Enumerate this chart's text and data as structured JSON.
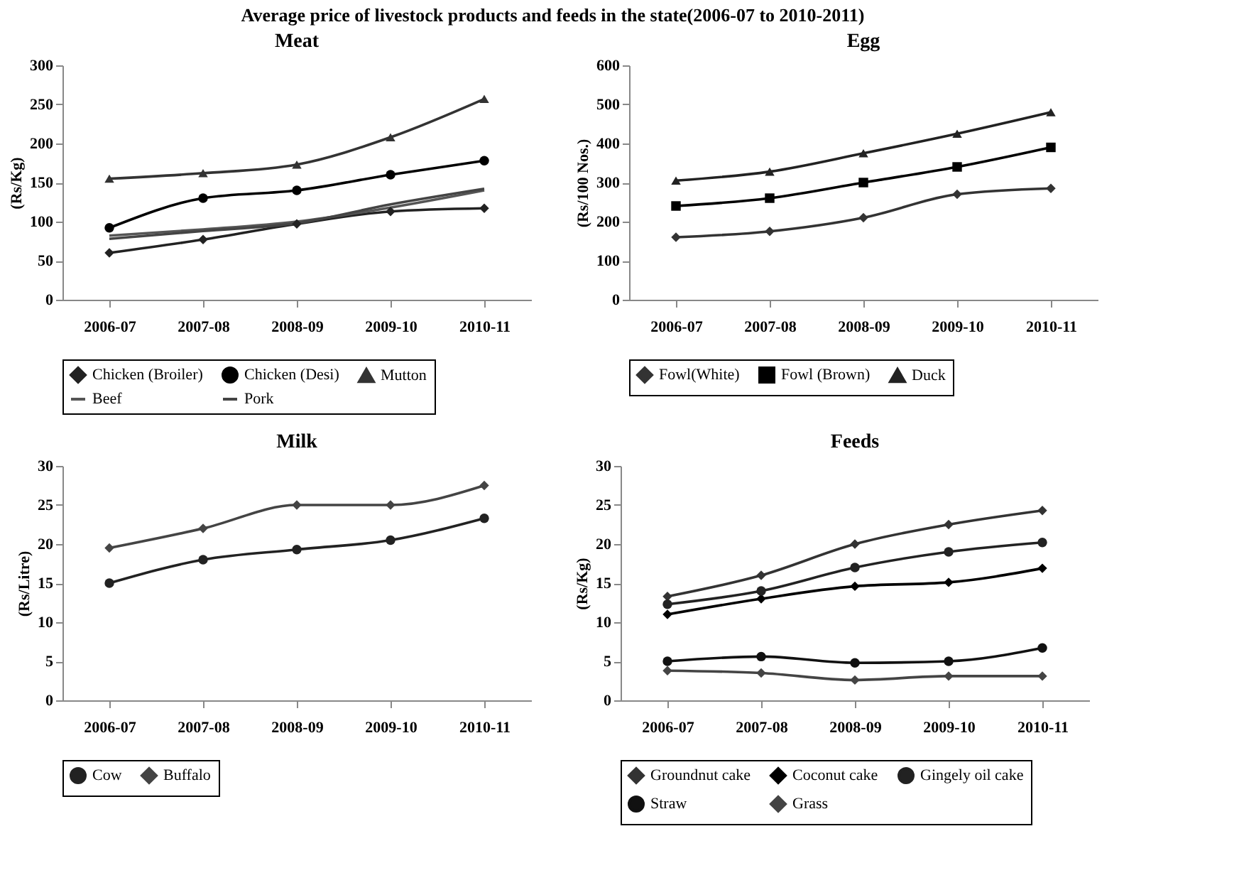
{
  "chart_data": [
    {
      "type": "line",
      "title": "Meat",
      "ylabel": "(Rs/Kg)",
      "annotations": [
        "Average price of livestock products and feeds in the state(2006-07 to 2010-2011)"
      ],
      "categories": [
        "2006-07",
        "2007-08",
        "2008-09",
        "2009-10",
        "2010-11"
      ],
      "ylim": [
        0,
        300
      ],
      "yticks": [
        0,
        50,
        100,
        150,
        200,
        250,
        300
      ],
      "grid": false,
      "legend": "bottom",
      "series": [
        {
          "name": "Chicken (Broiler)",
          "color": "#222222",
          "marker": "diamond",
          "values": [
            60,
            77,
            97,
            113,
            117
          ]
        },
        {
          "name": "Chicken (Desi)",
          "color": "#000000",
          "marker": "circle",
          "values": [
            92,
            130,
            140,
            160,
            178
          ]
        },
        {
          "name": "Mutton",
          "color": "#333333",
          "marker": "triangle",
          "values": [
            155,
            162,
            173,
            208,
            257
          ]
        },
        {
          "name": "Beef",
          "color": "#555555",
          "marker": "none",
          "values": [
            82,
            90,
            100,
            118,
            140
          ]
        },
        {
          "name": "Pork",
          "color": "#444444",
          "marker": "none",
          "values": [
            78,
            88,
            98,
            122,
            142
          ]
        }
      ]
    },
    {
      "type": "line",
      "title": "Egg",
      "ylabel": "(Rs/100 Nos.)",
      "categories": [
        "2006-07",
        "2007-08",
        "2008-09",
        "2009-10",
        "2010-11"
      ],
      "ylim": [
        0,
        600
      ],
      "yticks": [
        0,
        100,
        200,
        300,
        400,
        500,
        600
      ],
      "grid": false,
      "legend": "bottom",
      "series": [
        {
          "name": "Fowl(White)",
          "color": "#333333",
          "marker": "diamond",
          "values": [
            160,
            175,
            210,
            270,
            285
          ]
        },
        {
          "name": "Fowl (Brown)",
          "color": "#000000",
          "marker": "square",
          "values": [
            240,
            260,
            300,
            340,
            390
          ]
        },
        {
          "name": "Duck",
          "color": "#222222",
          "marker": "triangle",
          "values": [
            305,
            328,
            375,
            425,
            480
          ]
        }
      ]
    },
    {
      "type": "line",
      "title": "Milk",
      "ylabel": "(Rs/Litre)",
      "categories": [
        "2006-07",
        "2007-08",
        "2008-09",
        "2009-10",
        "2010-11"
      ],
      "ylim": [
        0,
        30
      ],
      "yticks": [
        0,
        5,
        10,
        15,
        20,
        25,
        30
      ],
      "grid": false,
      "legend": "bottom",
      "series": [
        {
          "name": "Cow",
          "color": "#222222",
          "marker": "circle",
          "values": [
            15,
            18,
            19.3,
            20.5,
            23.3
          ]
        },
        {
          "name": "Buffalo",
          "color": "#444444",
          "marker": "diamond",
          "values": [
            19.5,
            22,
            25,
            25,
            27.5
          ]
        }
      ]
    },
    {
      "type": "line",
      "title": "Feeds",
      "ylabel": "(Rs/Kg)",
      "categories": [
        "2006-07",
        "2007-08",
        "2008-09",
        "2009-10",
        "2010-11"
      ],
      "ylim": [
        0,
        30
      ],
      "yticks": [
        0,
        5,
        10,
        15,
        20,
        25,
        30
      ],
      "grid": false,
      "legend": "bottom",
      "series": [
        {
          "name": "Groundnut cake",
          "color": "#333333",
          "marker": "diamond",
          "values": [
            13.3,
            16,
            20,
            22.5,
            24.3
          ]
        },
        {
          "name": "Coconut cake",
          "color": "#000000",
          "marker": "diamond",
          "values": [
            11,
            13,
            14.6,
            15.1,
            16.9
          ]
        },
        {
          "name": "Gingely oil cake",
          "color": "#222222",
          "marker": "circle",
          "values": [
            12.3,
            14,
            17,
            19,
            20.2
          ]
        },
        {
          "name": "Straw",
          "color": "#111111",
          "marker": "circle",
          "values": [
            5,
            5.6,
            4.8,
            5,
            6.7
          ]
        },
        {
          "name": "Grass",
          "color": "#444444",
          "marker": "diamond",
          "values": [
            3.8,
            3.5,
            2.6,
            3.1,
            3.1
          ]
        }
      ]
    }
  ]
}
